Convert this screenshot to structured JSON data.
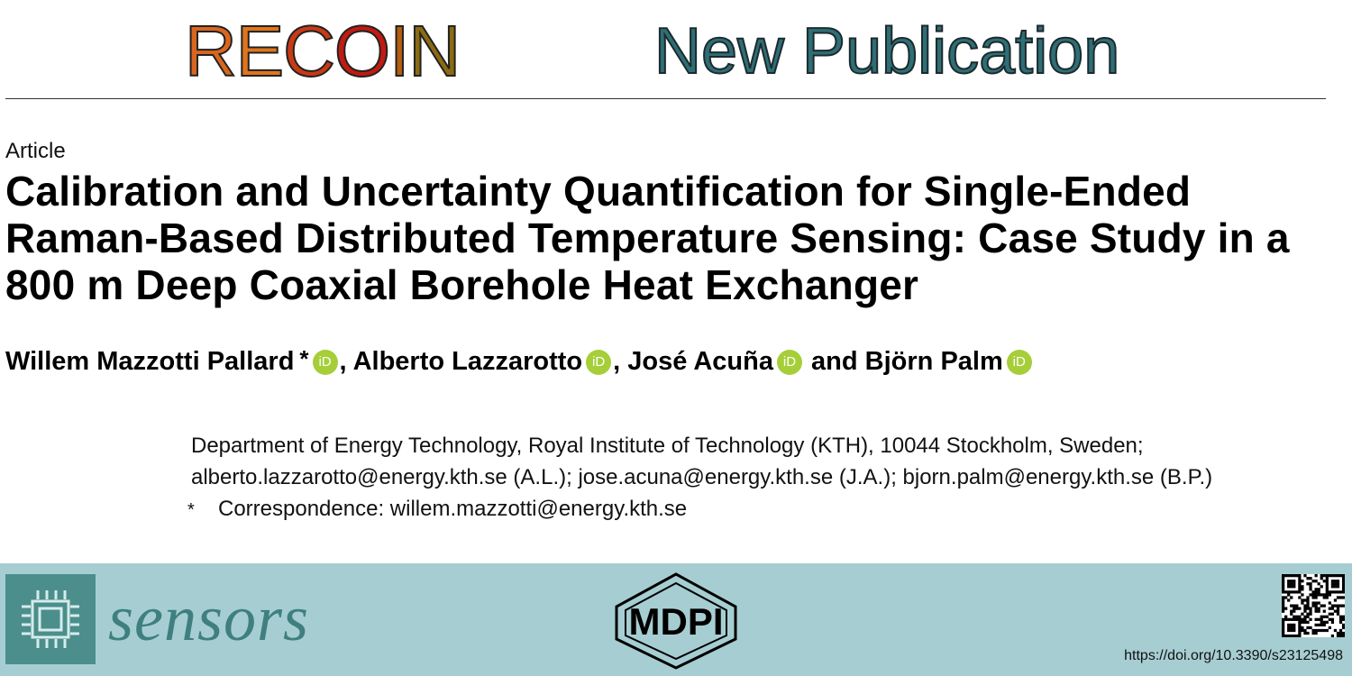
{
  "header": {
    "logo_letters": [
      {
        "char": "R",
        "color": "#d9661f"
      },
      {
        "char": "E",
        "color": "#e0751c"
      },
      {
        "char": "C",
        "color": "#c83a14"
      },
      {
        "char": "O",
        "color": "#c11a10"
      },
      {
        "char": "I",
        "color": "#b35e10"
      },
      {
        "char": "N",
        "color": "#8a6a12"
      }
    ],
    "title": "New Publication"
  },
  "article": {
    "type": "Article",
    "title": "Calibration and Uncertainty Quantification for Single-Ended Raman-Based Distributed Temperature Sensing: Case Study in a 800 m Deep Coaxial Borehole Heat Exchanger",
    "authors": {
      "a1": "Willem Mazzotti Pallard",
      "a1_mark": "*",
      "sep1": ",",
      "a2": "Alberto Lazzarotto",
      "sep2": ",",
      "a3": "José Acuña",
      "conj": "and",
      "a4": "Björn Palm",
      "orcid_label": "iD"
    },
    "affiliation_line1": "Department of Energy Technology, Royal Institute of Technology (KTH), 10044 Stockholm, Sweden;",
    "affiliation_line2": "alberto.lazzarotto@energy.kth.se (A.L.); jose.acuna@energy.kth.se (J.A.); bjorn.palm@energy.kth.se (B.P.)",
    "correspondence_mark": "*",
    "correspondence": "Correspondence: willem.mazzotti@energy.kth.se"
  },
  "footer": {
    "journal": "sensors",
    "publisher": "MDPI",
    "doi": "https://doi.org/10.3390/s23125498",
    "colors": {
      "band": "#a6ced2",
      "journal": "#3f7f80",
      "orcid": "#a6ce39"
    },
    "icons": [
      "chip-icon",
      "mdpi-logo",
      "qr-code"
    ]
  }
}
